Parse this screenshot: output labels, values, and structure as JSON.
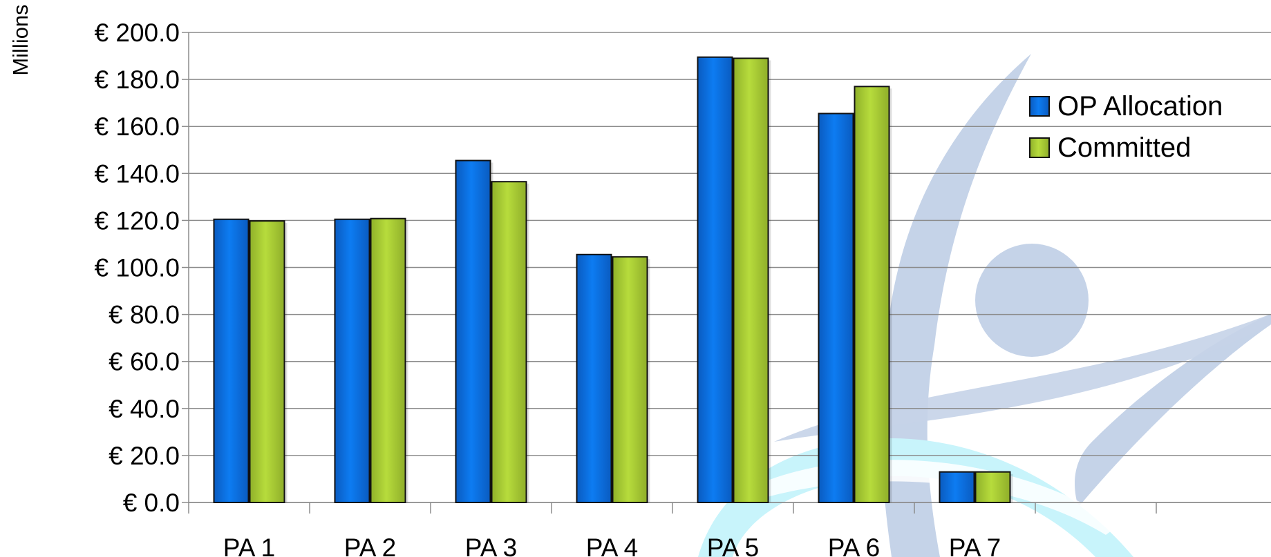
{
  "chart_data": {
    "type": "bar",
    "title": "",
    "xlabel": "",
    "ylabel": "",
    "unit_label": "Millions",
    "categories": [
      "PA 1",
      "PA 2",
      "PA 3",
      "PA 4",
      "PA 5",
      "PA 6",
      "PA 7",
      "",
      ""
    ],
    "series": [
      {
        "name": "OP Allocation",
        "color": "#0a6fe0",
        "values": [
          120.5,
          120.5,
          145.5,
          105.5,
          189.5,
          165.5,
          13.0,
          null,
          null
        ]
      },
      {
        "name": "Committed",
        "color": "#a6cc2c",
        "values": [
          119.8,
          120.8,
          136.5,
          104.5,
          189.0,
          177.0,
          13.0,
          null,
          null
        ]
      }
    ],
    "ylim": [
      0,
      200
    ],
    "y_ticks": [
      {
        "value": 0,
        "label": "€ 0.0"
      },
      {
        "value": 20,
        "label": "€ 20.0"
      },
      {
        "value": 40,
        "label": "€ 40.0"
      },
      {
        "value": 60,
        "label": "€ 60.0"
      },
      {
        "value": 80,
        "label": "€ 80.0"
      },
      {
        "value": 100,
        "label": "€ 100.0"
      },
      {
        "value": 120,
        "label": "€ 120.0"
      },
      {
        "value": 140,
        "label": "€ 140.0"
      },
      {
        "value": 160,
        "label": "€ 160.0"
      },
      {
        "value": 180,
        "label": "€ 180.0"
      },
      {
        "value": 200,
        "label": "€ 200.0"
      }
    ],
    "grid": true,
    "legend_position": "top-right",
    "watermark_colors": {
      "light_blue": "#c5d3e8",
      "cyan": "#c8f4fb"
    }
  }
}
